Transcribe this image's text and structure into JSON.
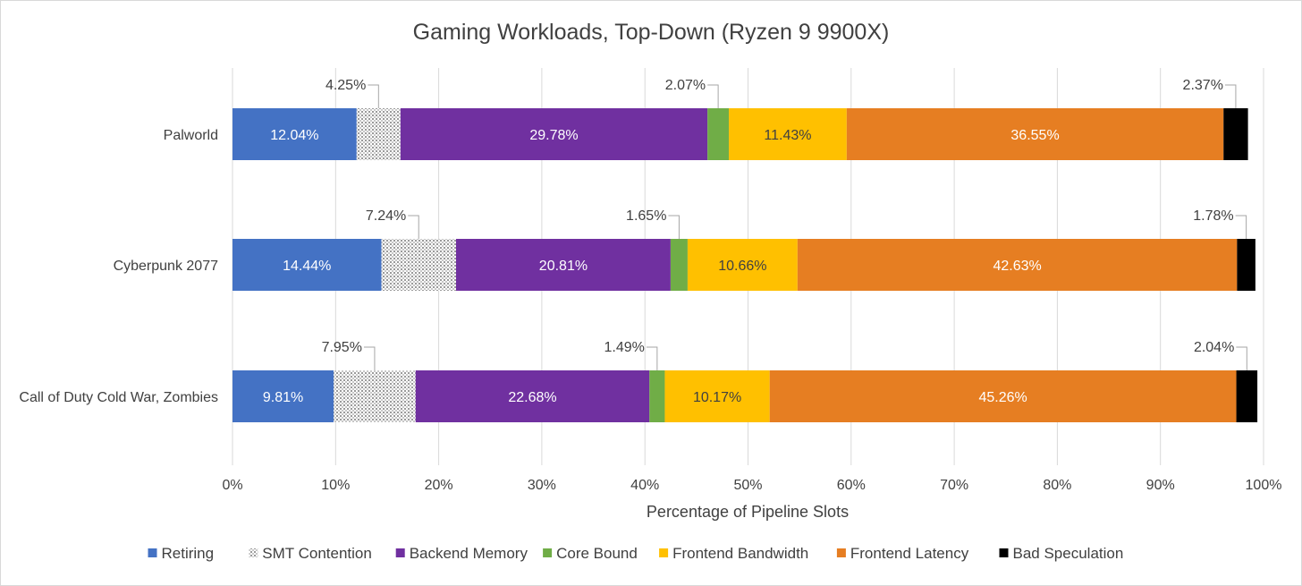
{
  "chart_data": {
    "type": "bar",
    "orientation": "horizontal",
    "stacked": true,
    "title": "Gaming Workloads, Top-Down (Ryzen 9 9900X)",
    "xlabel": "Percentage of Pipeline Slots",
    "ylabel": "",
    "xlim": [
      0,
      100
    ],
    "x_ticks": [
      "0%",
      "10%",
      "20%",
      "30%",
      "40%",
      "50%",
      "60%",
      "70%",
      "80%",
      "90%",
      "100%"
    ],
    "grid": "vertical",
    "legend_position": "bottom",
    "categories": [
      "Palworld",
      "Cyberpunk 2077",
      "Call of Duty Cold War, Zombies"
    ],
    "series": [
      {
        "name": "Retiring",
        "color": "#4472c4",
        "values": [
          12.04,
          14.44,
          9.81
        ],
        "labels": [
          "12.04%",
          "14.44%",
          "9.81%"
        ],
        "label_style": "inside-white"
      },
      {
        "name": "SMT Contention",
        "color": "#bfbfbf",
        "pattern": "dotted",
        "values": [
          4.25,
          7.24,
          7.95
        ],
        "labels": [
          "4.25%",
          "7.24%",
          "7.95%"
        ],
        "label_style": "callout"
      },
      {
        "name": "Backend Memory",
        "color": "#7030a0",
        "values": [
          29.78,
          20.81,
          22.68
        ],
        "labels": [
          "29.78%",
          "20.81%",
          "22.68%"
        ],
        "label_style": "inside-white"
      },
      {
        "name": "Core Bound",
        "color": "#70ad47",
        "values": [
          2.07,
          1.65,
          1.49
        ],
        "labels": [
          "2.07%",
          "1.65%",
          "1.49%"
        ],
        "label_style": "callout"
      },
      {
        "name": "Frontend Bandwidth",
        "color": "#ffc000",
        "values": [
          11.43,
          10.66,
          10.17
        ],
        "labels": [
          "11.43%",
          "10.66%",
          "10.17%"
        ],
        "label_style": "inside-dark"
      },
      {
        "name": "Frontend Latency",
        "color": "#e67e22",
        "values": [
          36.55,
          42.63,
          45.26
        ],
        "labels": [
          "36.55%",
          "42.63%",
          "45.26%"
        ],
        "label_style": "inside-white"
      },
      {
        "name": "Bad Speculation",
        "color": "#000000",
        "values": [
          2.37,
          1.78,
          2.04
        ],
        "labels": [
          "2.37%",
          "1.78%",
          "2.04%"
        ],
        "label_style": "callout"
      }
    ]
  }
}
